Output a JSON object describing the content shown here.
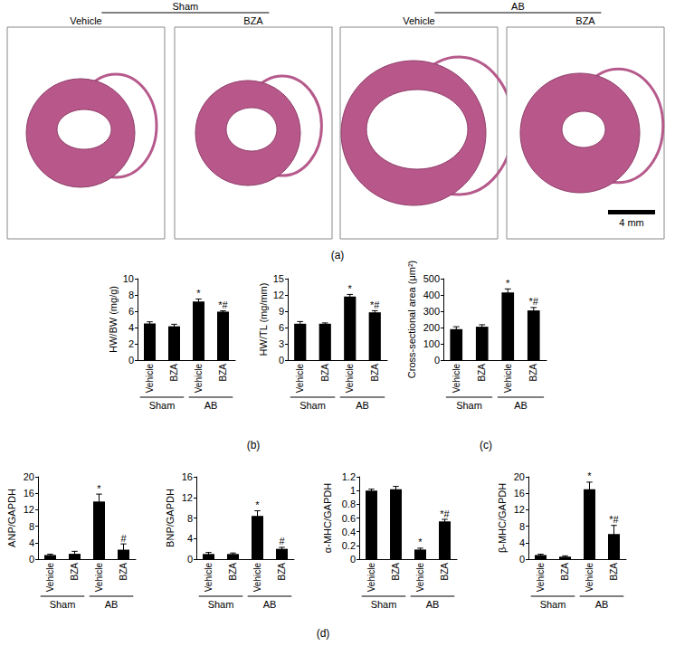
{
  "chart_data": [
    {
      "type": "bar",
      "y_label": "HW/BW (mg/g)",
      "categories": [
        "Vehicle",
        "BZA",
        "Vehicle",
        "BZA"
      ],
      "x_groups": [
        "Sham",
        "AB"
      ],
      "values": [
        4.5,
        4.15,
        7.2,
        5.95
      ],
      "errors": [
        0.2,
        0.25,
        0.3,
        0.1
      ],
      "annotations": [
        null,
        null,
        "*",
        "*#"
      ],
      "color": "#000000",
      "ylim": [
        0,
        10
      ],
      "yticks": [
        0,
        2,
        4,
        6,
        8,
        10
      ],
      "grid": false
    },
    {
      "type": "bar",
      "y_label": "HW/TL (mg/mm)",
      "categories": [
        "Vehicle",
        "BZA",
        "Vehicle",
        "BZA"
      ],
      "x_groups": [
        "Sham",
        "AB"
      ],
      "values": [
        6.7,
        6.7,
        11.7,
        8.8
      ],
      "errors": [
        0.4,
        0.15,
        0.4,
        0.3
      ],
      "annotations": [
        null,
        null,
        "*",
        "*#"
      ],
      "color": "#000000",
      "ylim": [
        0,
        15
      ],
      "yticks": [
        0,
        3,
        6,
        9,
        12,
        15
      ],
      "grid": false
    },
    {
      "type": "bar",
      "y_label": "Cross-sectional area (μm²)",
      "categories": [
        "Vehicle",
        "BZA",
        "Vehicle",
        "BZA"
      ],
      "x_groups": [
        "Sham",
        "AB"
      ],
      "values": [
        190,
        205,
        415,
        305
      ],
      "errors": [
        15,
        12,
        22,
        18
      ],
      "annotations": [
        null,
        null,
        "*",
        "*#"
      ],
      "color": "#000000",
      "ylim": [
        0,
        500
      ],
      "yticks": [
        0,
        100,
        200,
        300,
        400,
        500
      ],
      "grid": false
    },
    {
      "type": "bar",
      "y_label": "ANP/GAPDH",
      "categories": [
        "Vehicle",
        "BZA",
        "Vehicle",
        "BZA"
      ],
      "x_groups": [
        "Sham",
        "AB"
      ],
      "values": [
        1,
        1.3,
        14,
        2.3
      ],
      "errors": [
        0.2,
        0.6,
        1.8,
        1.4
      ],
      "annotations": [
        null,
        null,
        "*",
        "#"
      ],
      "color": "#000000",
      "ylim": [
        0,
        20
      ],
      "yticks": [
        0,
        4,
        8,
        12,
        16,
        20
      ],
      "grid": false
    },
    {
      "type": "bar",
      "y_label": "BNP/GAPDH",
      "categories": [
        "Vehicle",
        "BZA",
        "Vehicle",
        "BZA"
      ],
      "x_groups": [
        "Sham",
        "AB"
      ],
      "values": [
        1,
        1,
        8.4,
        2
      ],
      "errors": [
        0.3,
        0.2,
        1,
        0.3
      ],
      "annotations": [
        null,
        null,
        "*",
        "#"
      ],
      "color": "#000000",
      "ylim": [
        0,
        16
      ],
      "yticks": [
        0,
        4,
        8,
        12,
        16
      ],
      "grid": false
    },
    {
      "type": "bar",
      "y_label": "α-MHC/GAPDH",
      "categories": [
        "Vehicle",
        "BZA",
        "Vehicle",
        "BZA"
      ],
      "x_groups": [
        "Sham",
        "AB"
      ],
      "values": [
        1,
        1.02,
        0.14,
        0.55
      ],
      "errors": [
        0.02,
        0.04,
        0.02,
        0.03
      ],
      "annotations": [
        null,
        null,
        "*",
        "*#"
      ],
      "color": "#000000",
      "ylim": [
        0,
        1.2
      ],
      "yticks": [
        0,
        0.2,
        0.4,
        0.6,
        0.8,
        1,
        1.2
      ],
      "grid": false
    },
    {
      "type": "bar",
      "y_label": "β-MHC/GAPDH",
      "categories": [
        "Vehicle",
        "BZA",
        "Vehicle",
        "BZA"
      ],
      "x_groups": [
        "Sham",
        "AB"
      ],
      "values": [
        1,
        0.6,
        17,
        6.1
      ],
      "errors": [
        0.2,
        0.2,
        1.7,
        2.1
      ],
      "annotations": [
        null,
        null,
        "*",
        "*#"
      ],
      "color": "#000000",
      "ylim": [
        0,
        20
      ],
      "yticks": [
        0,
        4,
        8,
        12,
        16,
        20
      ],
      "grid": false
    }
  ],
  "figure": {
    "panel_labels": [
      "(a)",
      "(b)",
      "(c)",
      "(d)"
    ],
    "sections": [
      {
        "group": "Sham",
        "images": [
          "Vehicle",
          "BZA"
        ]
      },
      {
        "group": "AB",
        "images": [
          "Vehicle",
          "BZA"
        ]
      }
    ],
    "scale_bar": "4 mm"
  }
}
